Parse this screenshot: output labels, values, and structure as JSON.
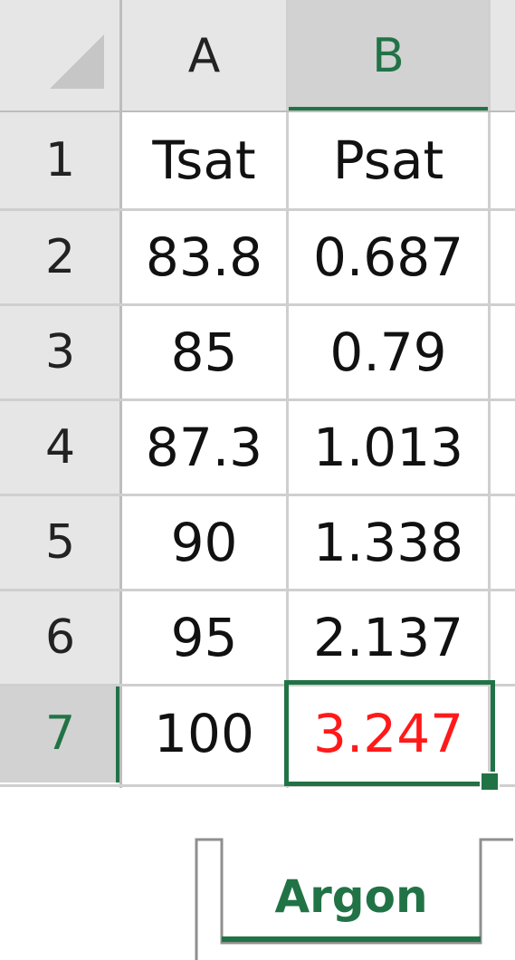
{
  "columns": [
    {
      "id": "col-a",
      "label": "A"
    },
    {
      "id": "col-b",
      "label": "B"
    }
  ],
  "rows": [
    {
      "num": "1",
      "a": "Tsat",
      "b": "Psat"
    },
    {
      "num": "2",
      "a": "83.8",
      "b": "0.687"
    },
    {
      "num": "3",
      "a": "85",
      "b": "0.79"
    },
    {
      "num": "4",
      "a": "87.3",
      "b": "1.013"
    },
    {
      "num": "5",
      "a": "90",
      "b": "1.338"
    },
    {
      "num": "6",
      "a": "95",
      "b": "2.137"
    },
    {
      "num": "7",
      "a": "100",
      "b": "3.247"
    }
  ],
  "active_cell": "B7",
  "colors": {
    "accent": "#217346",
    "header_bg": "#e6e6e6",
    "active_header_bg": "#d2d2d2",
    "gridline": "#cfcfcf",
    "highlight_text": "#ff1a1a"
  },
  "sheet_tab": {
    "label": "Argon"
  }
}
